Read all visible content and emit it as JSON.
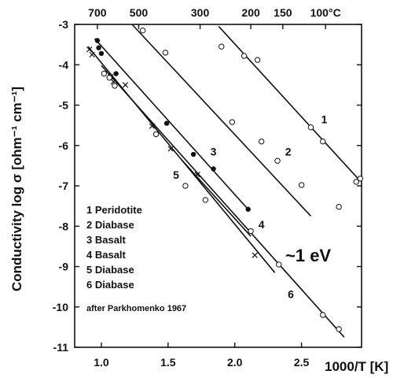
{
  "chart_data": {
    "type": "scatter",
    "xlabel": "1000/T [K]",
    "ylabel": "Conductivity log σ  [ohm⁻¹ cm⁻¹]",
    "xlim": [
      0.8,
      2.95
    ],
    "ylim": [
      -11,
      -3
    ],
    "x_ticks": [
      {
        "value": 1.0,
        "label": "1.0"
      },
      {
        "value": 1.5,
        "label": "1.5"
      },
      {
        "value": 2.0,
        "label": "2.0"
      },
      {
        "value": 2.5,
        "label": "2.5"
      }
    ],
    "y_ticks": [
      {
        "value": -3,
        "label": "-3"
      },
      {
        "value": -4,
        "label": "-4"
      },
      {
        "value": -5,
        "label": "-5"
      },
      {
        "value": -6,
        "label": "-6"
      },
      {
        "value": -7,
        "label": "-7"
      },
      {
        "value": -8,
        "label": "-8"
      },
      {
        "value": -9,
        "label": "-9"
      },
      {
        "value": -10,
        "label": "-10"
      },
      {
        "value": -11,
        "label": "-11"
      }
    ],
    "top_axis_labels": [
      {
        "x": 0.97,
        "label": "700"
      },
      {
        "x": 1.28,
        "label": "500"
      },
      {
        "x": 1.74,
        "label": "300"
      },
      {
        "x": 2.12,
        "label": "200"
      },
      {
        "x": 2.36,
        "label": "150"
      },
      {
        "x": 2.68,
        "label": "100°C"
      }
    ],
    "legend": [
      "1 Peridotite",
      "2 Diabase",
      "3 Basalt",
      "4 Basalt",
      "5 Diabase",
      "6 Diabase"
    ],
    "source_note": "after Parkhomenko 1967",
    "activation_energy_note": "~1 eV",
    "series": [
      {
        "name": "1",
        "label_at": [
          2.67,
          -5.45
        ],
        "line": [
          [
            1.88,
            -3.05
          ],
          [
            2.94,
            -6.88
          ]
        ],
        "points": [
          {
            "x": 1.9,
            "y": -3.55,
            "m": "open"
          },
          {
            "x": 2.07,
            "y": -3.78,
            "m": "open"
          },
          {
            "x": 2.17,
            "y": -3.88,
            "m": "open"
          },
          {
            "x": 2.57,
            "y": -5.55,
            "m": "open"
          },
          {
            "x": 2.66,
            "y": -5.9,
            "m": "open"
          },
          {
            "x": 2.91,
            "y": -6.9,
            "m": "open"
          },
          {
            "x": 2.94,
            "y": -6.82,
            "m": "open"
          }
        ]
      },
      {
        "name": "2",
        "label_at": [
          2.4,
          -6.25
        ],
        "line": [
          [
            1.23,
            -3.0
          ],
          [
            2.57,
            -7.75
          ]
        ],
        "points": [
          {
            "x": 1.31,
            "y": -3.15,
            "m": "open"
          },
          {
            "x": 1.48,
            "y": -3.7,
            "m": "open"
          },
          {
            "x": 1.98,
            "y": -5.42,
            "m": "open"
          },
          {
            "x": 2.2,
            "y": -5.9,
            "m": "open"
          },
          {
            "x": 2.32,
            "y": -6.38,
            "m": "open"
          },
          {
            "x": 2.5,
            "y": -6.98,
            "m": "open"
          },
          {
            "x": 2.78,
            "y": -7.52,
            "m": "open"
          }
        ]
      },
      {
        "name": "3",
        "label_at": [
          1.84,
          -6.25
        ],
        "line": [
          [
            0.95,
            -3.35
          ],
          [
            2.11,
            -7.62
          ]
        ],
        "points": [
          {
            "x": 0.97,
            "y": -3.4,
            "m": "filled"
          },
          {
            "x": 0.98,
            "y": -3.58,
            "m": "filled"
          },
          {
            "x": 1.0,
            "y": -3.72,
            "m": "filled"
          },
          {
            "x": 1.11,
            "y": -4.22,
            "m": "filled"
          },
          {
            "x": 1.49,
            "y": -5.45,
            "m": "filled"
          },
          {
            "x": 1.69,
            "y": -6.22,
            "m": "filled"
          },
          {
            "x": 1.84,
            "y": -6.58,
            "m": "filled"
          },
          {
            "x": 2.1,
            "y": -7.58,
            "m": "filled"
          }
        ]
      },
      {
        "name": "4",
        "label_at": [
          2.2,
          -8.05
        ],
        "line": [
          [
            1.6,
            -6.35
          ],
          [
            2.12,
            -8.25
          ]
        ],
        "points": [
          {
            "x": 2.12,
            "y": -8.12,
            "m": "open"
          }
        ]
      },
      {
        "name": "5",
        "label_at": [
          1.56,
          -6.82
        ],
        "line": [
          [
            0.9,
            -3.55
          ],
          [
            2.3,
            -9.15
          ]
        ],
        "points": [
          {
            "x": 0.91,
            "y": -3.62,
            "m": "cross"
          },
          {
            "x": 0.93,
            "y": -3.75,
            "m": "cross"
          },
          {
            "x": 1.07,
            "y": -4.3,
            "m": "cross"
          },
          {
            "x": 1.09,
            "y": -4.42,
            "m": "cross"
          },
          {
            "x": 1.18,
            "y": -4.5,
            "m": "cross"
          },
          {
            "x": 1.38,
            "y": -5.52,
            "m": "cross"
          },
          {
            "x": 1.52,
            "y": -6.08,
            "m": "cross"
          },
          {
            "x": 1.72,
            "y": -6.72,
            "m": "cross"
          },
          {
            "x": 2.15,
            "y": -8.72,
            "m": "cross"
          }
        ]
      },
      {
        "name": "6",
        "label_at": [
          2.42,
          -9.78
        ],
        "line": [
          [
            1.0,
            -4.02
          ],
          [
            2.82,
            -10.75
          ]
        ],
        "points": [
          {
            "x": 1.02,
            "y": -4.22,
            "m": "open"
          },
          {
            "x": 1.06,
            "y": -4.32,
            "m": "open"
          },
          {
            "x": 1.1,
            "y": -4.52,
            "m": "open"
          },
          {
            "x": 1.41,
            "y": -5.72,
            "m": "open"
          },
          {
            "x": 1.63,
            "y": -7.0,
            "m": "open"
          },
          {
            "x": 1.78,
            "y": -7.35,
            "m": "open"
          },
          {
            "x": 2.33,
            "y": -8.95,
            "m": "open"
          },
          {
            "x": 2.66,
            "y": -10.2,
            "m": "open"
          },
          {
            "x": 2.78,
            "y": -10.55,
            "m": "open"
          }
        ]
      }
    ]
  }
}
